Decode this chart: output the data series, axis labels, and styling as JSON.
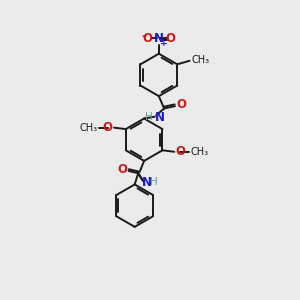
{
  "background_color": "#ebebeb",
  "black": "#1a1a1a",
  "blue": "#1a1acc",
  "red": "#cc1a1a",
  "teal": "#5f9ea0",
  "bond_lw": 1.4,
  "figsize": [
    3.0,
    3.0
  ],
  "dpi": 100,
  "xlim": [
    0,
    10
  ],
  "ylim": [
    0,
    10
  ]
}
